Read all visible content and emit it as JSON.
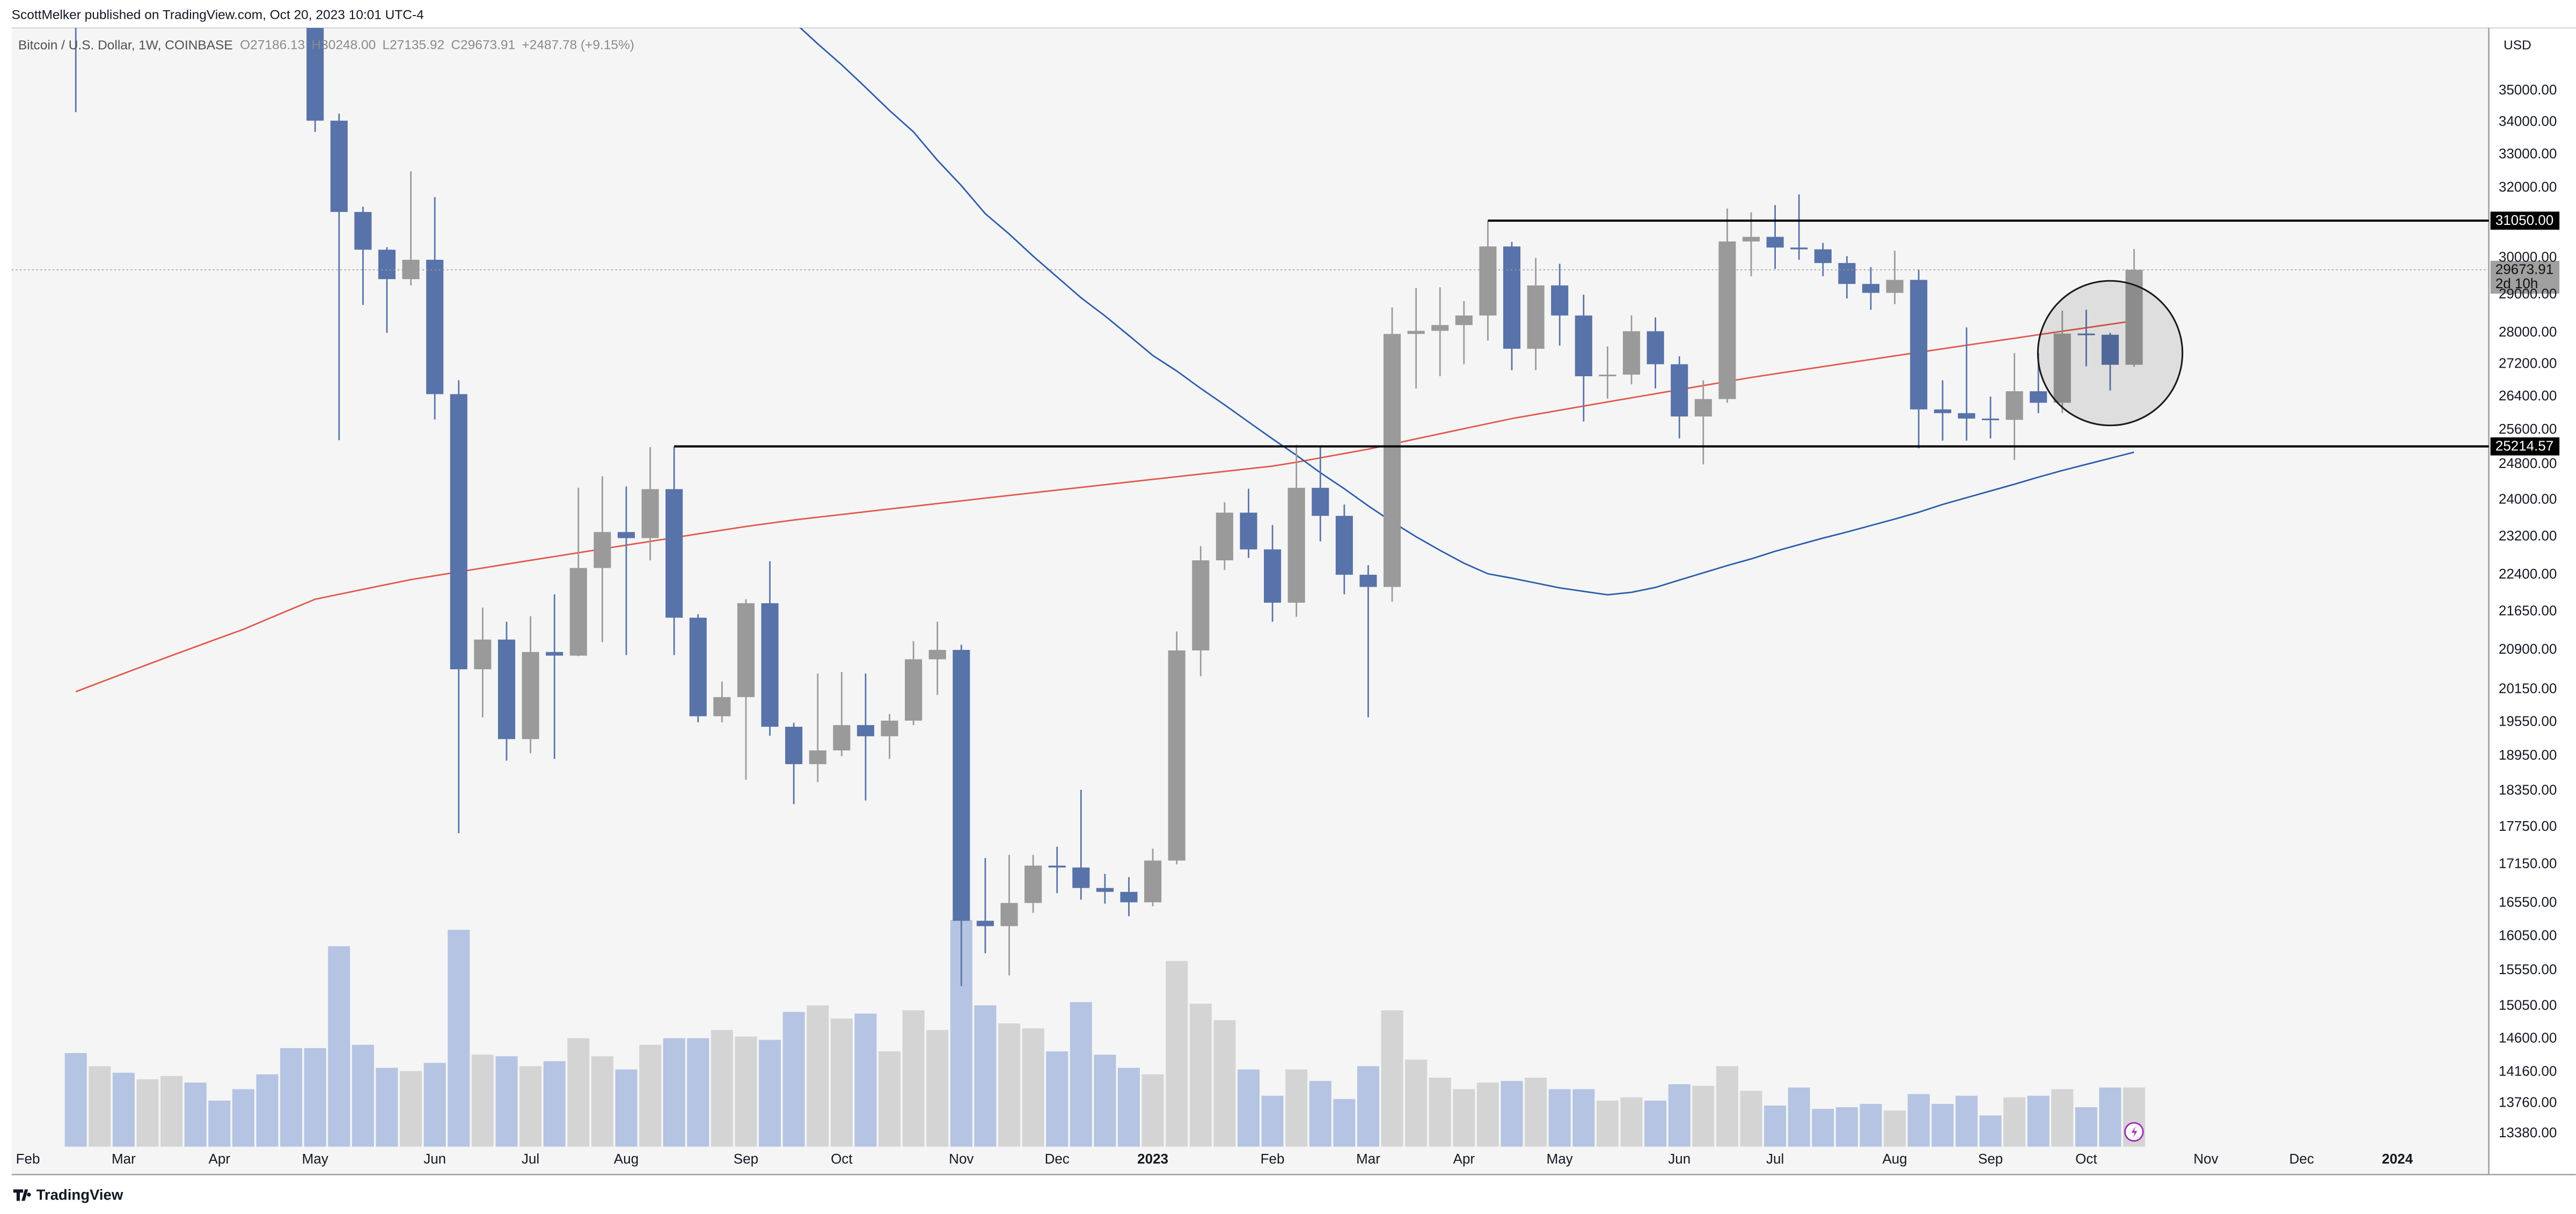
{
  "header": {
    "publisher": "ScottMelker published on TradingView.com, Oct 20, 2023 10:01 UTC-4",
    "footer": "TradingView"
  },
  "chart_data": {
    "type": "candlestick",
    "title": "Bitcoin / U.S. Dollar, 1W, COINBASE",
    "ohlc_labels": [
      "O27186.13",
      "H30248.00",
      "L27135.92",
      "C29673.91",
      "+2487.78 (+9.15%)"
    ],
    "currency": "USD",
    "ylog": true,
    "grid": false,
    "up_color": "#9a9a9a",
    "down_color": "#5873a9",
    "volume_up_color": "#d4d4d4",
    "volume_down_color": "#b4c4e2",
    "xlim": [
      -2.68,
      100.82
    ],
    "xticks": [
      {
        "value": -2,
        "label": "Feb"
      },
      {
        "value": 2,
        "label": "Mar"
      },
      {
        "value": 6,
        "label": "Apr"
      },
      {
        "value": 10,
        "label": "May"
      },
      {
        "value": 15,
        "label": "Jun"
      },
      {
        "value": 19,
        "label": "Jul"
      },
      {
        "value": 23,
        "label": "Aug"
      },
      {
        "value": 28,
        "label": "Sep"
      },
      {
        "value": 32,
        "label": "Oct"
      },
      {
        "value": 37,
        "label": "Nov"
      },
      {
        "value": 41,
        "label": "Dec"
      },
      {
        "value": 45,
        "label": "2023"
      },
      {
        "value": 50,
        "label": "Feb"
      },
      {
        "value": 54,
        "label": "Mar"
      },
      {
        "value": 58,
        "label": "Apr"
      },
      {
        "value": 62,
        "label": "May"
      },
      {
        "value": 67,
        "label": "Jun"
      },
      {
        "value": 71,
        "label": "Jul"
      },
      {
        "value": 76,
        "label": "Aug"
      },
      {
        "value": 80,
        "label": "Sep"
      },
      {
        "value": 84,
        "label": "Oct"
      },
      {
        "value": 89,
        "label": "Nov"
      },
      {
        "value": 93,
        "label": "Dec"
      },
      {
        "value": 97,
        "label": "2024"
      }
    ],
    "ylim": [
      13219,
      37090
    ],
    "yticks": [
      {
        "value": 35000,
        "label": "35000.00"
      },
      {
        "value": 34000,
        "label": "34000.00"
      },
      {
        "value": 33000,
        "label": "33000.00"
      },
      {
        "value": 32000,
        "label": "32000.00"
      },
      {
        "value": 30000,
        "label": "30000.00"
      },
      {
        "value": 29000,
        "label": "29000.00"
      },
      {
        "value": 28000,
        "label": "28000.00"
      },
      {
        "value": 27200,
        "label": "27200.00"
      },
      {
        "value": 26400,
        "label": "26400.00"
      },
      {
        "value": 25600,
        "label": "25600.00"
      },
      {
        "value": 24800,
        "label": "24800.00"
      },
      {
        "value": 24000,
        "label": "24000.00"
      },
      {
        "value": 23200,
        "label": "23200.00"
      },
      {
        "value": 22400,
        "label": "22400.00"
      },
      {
        "value": 21650,
        "label": "21650.00"
      },
      {
        "value": 20900,
        "label": "20900.00"
      },
      {
        "value": 20150,
        "label": "20150.00"
      },
      {
        "value": 19550,
        "label": "19550.00"
      },
      {
        "value": 18950,
        "label": "18950.00"
      },
      {
        "value": 18350,
        "label": "18350.00"
      },
      {
        "value": 17750,
        "label": "17750.00"
      },
      {
        "value": 17150,
        "label": "17150.00"
      },
      {
        "value": 16550,
        "label": "16550.00"
      },
      {
        "value": 16050,
        "label": "16050.00"
      },
      {
        "value": 15550,
        "label": "15550.00"
      },
      {
        "value": 15050,
        "label": "15050.00"
      },
      {
        "value": 14600,
        "label": "14600.00"
      },
      {
        "value": 14160,
        "label": "14160.00"
      },
      {
        "value": 13760,
        "label": "13760.00"
      },
      {
        "value": 13380,
        "label": "13380.00"
      }
    ],
    "open": [
      38360,
      37700,
      38400,
      37780,
      41260,
      46830,
      46400,
      42150,
      39700,
      39450,
      38460,
      34050,
      31300,
      30230,
      29420,
      29950,
      26460,
      20530,
      21100,
      19250,
      20860,
      20790,
      22540,
      23300,
      23170,
      24240,
      21530,
      19660,
      20010,
      21820,
      19470,
      18810,
      19050,
      19500,
      19300,
      19580,
      20720,
      20900,
      16280,
      16200,
      16550,
      17130,
      17100,
      16780,
      16720,
      16560,
      17210,
      20890,
      22700,
      23720,
      22930,
      21830,
      24270,
      23650,
      22400,
      22150,
      27970,
      28050,
      28200,
      28450,
      30320,
      27590,
      29250,
      28450,
      26900,
      26940,
      28040,
      27200,
      25920,
      26340,
      30460,
      30590,
      30290,
      30240,
      29860,
      29290,
      29050,
      29400,
      26090,
      26000,
      25870,
      25840,
      26530,
      26250,
      27980,
      27950,
      27186.13
    ],
    "high": [
      39850,
      45400,
      42600,
      42300,
      47440,
      48200,
      47170,
      42400,
      42980,
      40800,
      40000,
      34270,
      31450,
      30300,
      32500,
      31730,
      26800,
      21730,
      21450,
      21560,
      22000,
      24270,
      24530,
      24300,
      25200,
      25211,
      21600,
      20300,
      21900,
      22680,
      19540,
      20450,
      20480,
      20450,
      19700,
      21070,
      21450,
      21000,
      17250,
      17300,
      17300,
      17430,
      18370,
      17000,
      16950,
      17400,
      21260,
      23000,
      23950,
      24250,
      23450,
      25250,
      25200,
      23900,
      22600,
      28660,
      29180,
      29200,
      28830,
      31050,
      30450,
      30000,
      29840,
      29000,
      27650,
      28450,
      28400,
      27400,
      26800,
      31400,
      31290,
      31500,
      31810,
      30420,
      30050,
      29750,
      30200,
      29680,
      26800,
      28140,
      26400,
      27480,
      27480,
      28580,
      28600,
      28000,
      30248
    ],
    "low": [
      34320,
      37150,
      37170,
      37600,
      40500,
      44200,
      42110,
      39200,
      38540,
      37580,
      33700,
      25360,
      28730,
      28000,
      29250,
      25850,
      17650,
      19640,
      18870,
      19000,
      18900,
      20780,
      21050,
      20800,
      22700,
      20800,
      19550,
      19550,
      18540,
      19310,
      18130,
      18500,
      18950,
      18190,
      18900,
      19500,
      20050,
      15330,
      15800,
      15480,
      16400,
      16700,
      16600,
      16540,
      16350,
      16500,
      17150,
      20400,
      22500,
      22750,
      21450,
      21550,
      23100,
      22000,
      19640,
      21850,
      26600,
      26900,
      27200,
      27800,
      27050,
      27050,
      27670,
      25800,
      26350,
      26700,
      26600,
      25400,
      24800,
      26250,
      29500,
      29700,
      29950,
      29500,
      28900,
      28600,
      28750,
      25170,
      25350,
      25350,
      25400,
      24900,
      26000,
      26000,
      27150,
      26550,
      27135.92
    ],
    "close": [
      37700,
      38400,
      37780,
      41260,
      46830,
      46400,
      42150,
      39700,
      39450,
      38460,
      34050,
      31300,
      30230,
      29420,
      29950,
      26460,
      20530,
      21100,
      19250,
      20860,
      20790,
      22540,
      23300,
      23170,
      24240,
      21530,
      19660,
      20010,
      21820,
      19470,
      18810,
      19050,
      19500,
      19300,
      19580,
      20720,
      20900,
      16280,
      16200,
      16550,
      17130,
      17100,
      16780,
      16720,
      16560,
      17210,
      20890,
      22700,
      23720,
      22930,
      21830,
      24270,
      23650,
      22400,
      22150,
      27970,
      28050,
      28200,
      28450,
      30320,
      27590,
      29250,
      28450,
      26900,
      26940,
      28040,
      27200,
      25920,
      26340,
      30460,
      30590,
      30290,
      30240,
      29860,
      29290,
      29050,
      29400,
      26090,
      26000,
      25870,
      25840,
      26530,
      26250,
      27980,
      27950,
      27186.13,
      29673.91
    ],
    "volume_lim": [
      0,
      681
    ],
    "volume": [
      57,
      49,
      45,
      41,
      43,
      39,
      28,
      35,
      44,
      60,
      60,
      122,
      62,
      48,
      46,
      51,
      132,
      56,
      55,
      49,
      52,
      66,
      55,
      47,
      62,
      66,
      66,
      71,
      67,
      65,
      82,
      86,
      78,
      81,
      58,
      83,
      71,
      138,
      86,
      75,
      72,
      58,
      88,
      56,
      48,
      44,
      113,
      87,
      77,
      47,
      31,
      47,
      40,
      29,
      49,
      83,
      53,
      42,
      35,
      39,
      40,
      42,
      35,
      35,
      28,
      30,
      28,
      38,
      37,
      49,
      34,
      25,
      36,
      23,
      24,
      26,
      22,
      32,
      26,
      31,
      19,
      30,
      31,
      35,
      24,
      36,
      36
    ],
    "ma_lines": [
      {
        "color": "#e2574c",
        "values": [
          20110,
          20280,
          20450,
          20620,
          20790,
          20960,
          21130,
          21300,
          21500,
          21700,
          21900,
          22000,
          22100,
          22200,
          22300,
          22380,
          22460,
          22540,
          22620,
          22700,
          22780,
          22860,
          22940,
          23020,
          23100,
          23180,
          23260,
          23340,
          23420,
          23490,
          23560,
          23620,
          23680,
          23740,
          23800,
          23860,
          23920,
          23980,
          24040,
          24100,
          24160,
          24220,
          24280,
          24340,
          24400,
          24460,
          24520,
          24580,
          24640,
          24700,
          24760,
          24850,
          24950,
          25050,
          25150,
          25270,
          25390,
          25510,
          25630,
          25750,
          25870,
          25970,
          26070,
          26170,
          26270,
          26370,
          26470,
          26570,
          26670,
          26770,
          26870,
          26960,
          27050,
          27140,
          27230,
          27320,
          27410,
          27500,
          27590,
          27680,
          27770,
          27860,
          27950,
          28040,
          28130,
          28220,
          28310
        ]
      },
      {
        "color": "#2a5caa",
        "values": [
          null,
          null,
          null,
          null,
          null,
          null,
          null,
          null,
          null,
          null,
          null,
          null,
          null,
          null,
          null,
          null,
          null,
          null,
          null,
          null,
          null,
          null,
          null,
          null,
          null,
          null,
          null,
          null,
          null,
          null,
          37300,
          36550,
          35850,
          35110,
          34370,
          33700,
          32830,
          32070,
          31250,
          30670,
          30050,
          29480,
          28920,
          28440,
          27930,
          27420,
          27030,
          26600,
          26200,
          25790,
          25390,
          25010,
          24610,
          24250,
          23870,
          23520,
          23200,
          22910,
          22640,
          22420,
          22330,
          22230,
          22130,
          22060,
          21990,
          22040,
          22140,
          22290,
          22440,
          22590,
          22730,
          22890,
          23030,
          23170,
          23300,
          23440,
          23580,
          23730,
          23900,
          24050,
          24200,
          24350,
          24510,
          24660,
          24800,
          24940,
          25080
        ]
      }
    ],
    "levels": [
      {
        "value": 31050,
        "label": "31050.00",
        "x0": 59
      },
      {
        "value": 25214.57,
        "label": "25214.57",
        "x0": 25
      }
    ],
    "last_price": {
      "value": 29673.91,
      "label": "29673.91",
      "countdown": "2d 10h"
    },
    "highlight": {
      "x": 85,
      "y": 27480
    }
  }
}
